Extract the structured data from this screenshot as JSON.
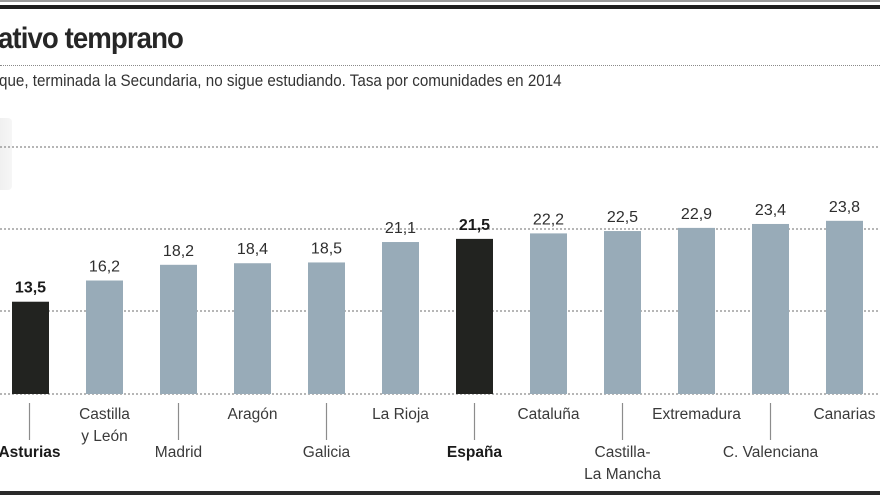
{
  "header": {
    "title": "ativo temprano",
    "subtitle": "que, terminada la Secundaria, no sigue estudiando. Tasa por comunidades en 2014"
  },
  "colors": {
    "highlight_bar": "#222320",
    "bar": "#98abb8",
    "gridline": "#8a8a8a"
  },
  "chart_data": {
    "type": "bar",
    "title": "ativo temprano",
    "subtitle": "que, terminada la Secundaria, no sigue estudiando. Tasa por comunidades en 2014",
    "xlabel": "",
    "ylabel": "",
    "grid": true,
    "legend": "none",
    "ylim": [
      1.75,
      33.2
    ],
    "categories": [
      "Asturias",
      "Castilla y León",
      "Madrid",
      "Aragón",
      "Galicia",
      "La Rioja",
      "España",
      "Cataluña",
      "Castilla-La Mancha",
      "Extremadura",
      "C. Valenciana",
      "Canarias"
    ],
    "category_lines": [
      [
        "Asturias"
      ],
      [
        "Castilla",
        "y León"
      ],
      [
        "Madrid"
      ],
      [
        "Aragón"
      ],
      [
        "Galicia"
      ],
      [
        "La Rioja"
      ],
      [
        "España"
      ],
      [
        "Cataluña"
      ],
      [
        "Castilla-",
        "La Mancha"
      ],
      [
        "Extremadura"
      ],
      [
        "C. Valenciana"
      ],
      [
        "Canarias"
      ]
    ],
    "values": [
      13.5,
      16.2,
      18.2,
      18.4,
      18.5,
      21.1,
      21.5,
      22.2,
      22.5,
      22.9,
      23.4,
      23.8
    ],
    "value_labels": [
      "13,5",
      "16,2",
      "18,2",
      "18,4",
      "18,5",
      "21,1",
      "21,5",
      "22,2",
      "22,5",
      "22,9",
      "23,4",
      "23,8"
    ],
    "highlighted": [
      "Asturias",
      "España"
    ]
  }
}
